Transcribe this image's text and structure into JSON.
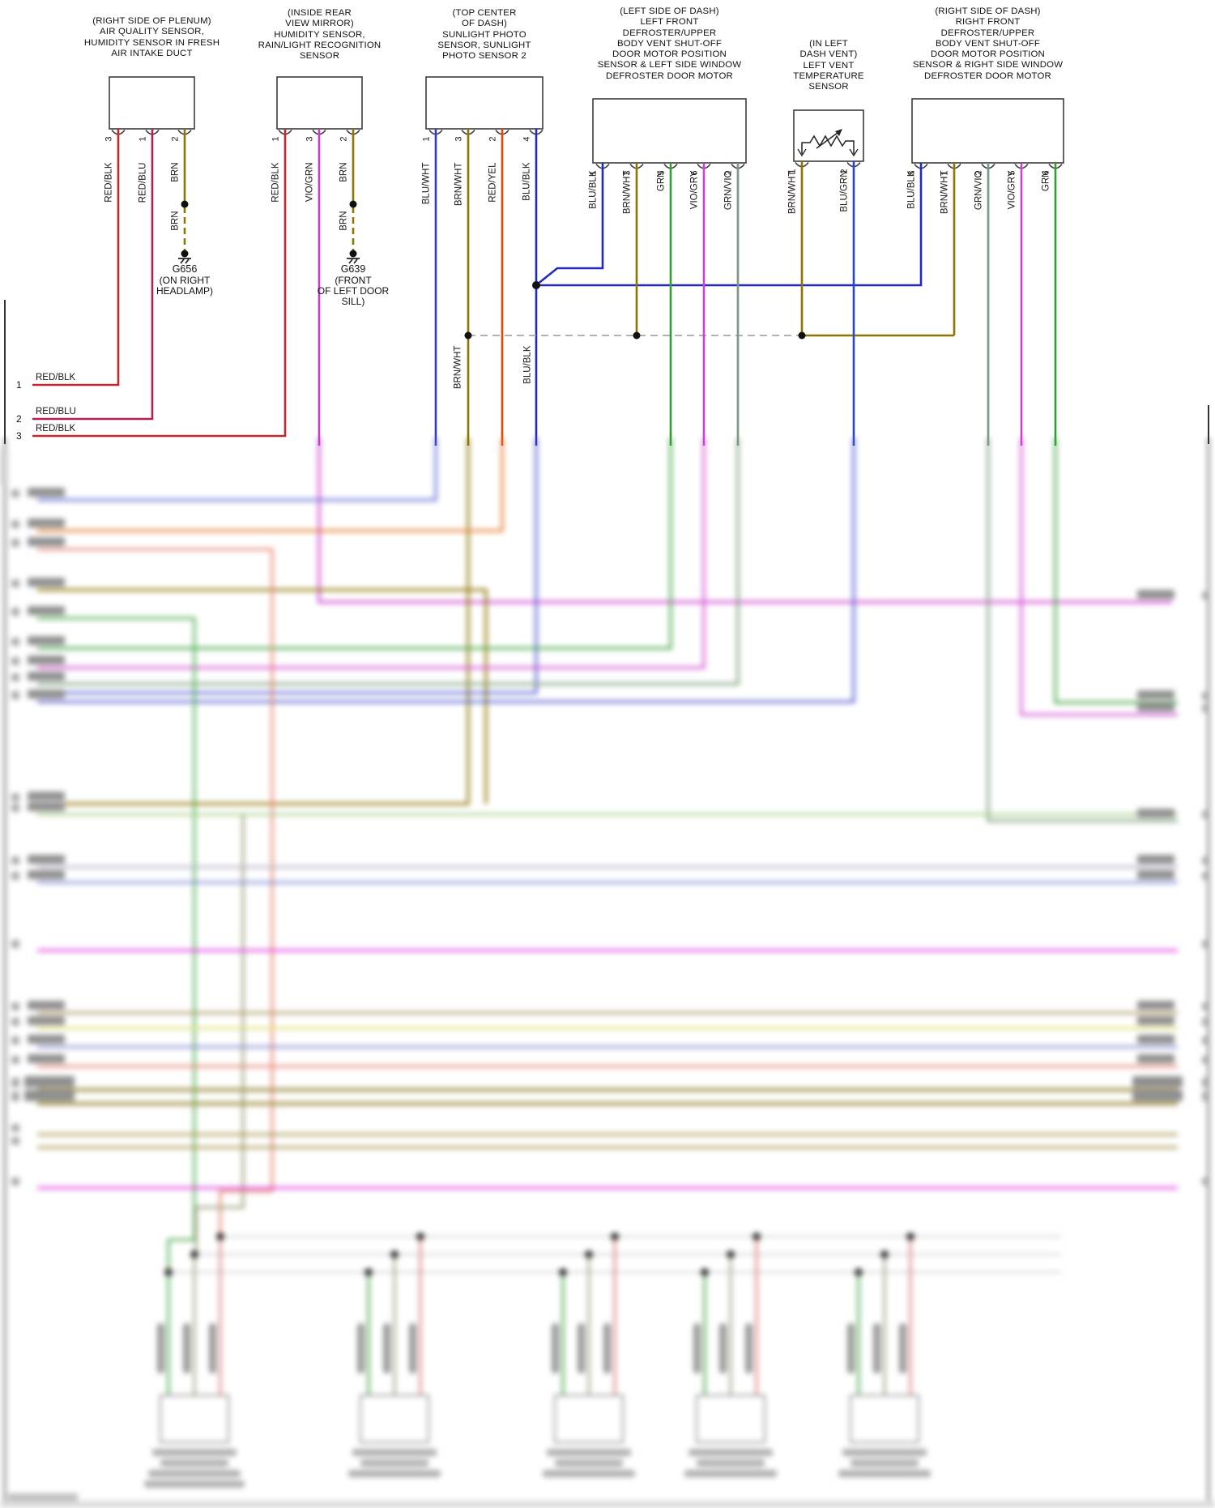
{
  "connectors": [
    {
      "id": "air-quality-sensor",
      "title": "(RIGHT SIDE OF PLENUM)\nAIR QUALITY SENSOR,\nHUMIDITY SENSOR IN FRESH\nAIR INTAKE DUCT",
      "pins": [
        {
          "n": "3",
          "color": "RED/BLK"
        },
        {
          "n": "1",
          "color": "RED/BLU"
        },
        {
          "n": "2",
          "color": "BRN"
        }
      ]
    },
    {
      "id": "rain-light-sensor",
      "title": "(INSIDE REAR\nVIEW MIRROR)\nHUMIDITY SENSOR,\nRAIN/LIGHT RECOGNITION\nSENSOR",
      "pins": [
        {
          "n": "1",
          "color": "RED/BLK"
        },
        {
          "n": "3",
          "color": "VIO/GRN"
        },
        {
          "n": "2",
          "color": "BRN"
        }
      ]
    },
    {
      "id": "sunlight-photo-sensor",
      "title": "(TOP CENTER\nOF DASH)\nSUNLIGHT PHOTO\nSENSOR, SUNLIGHT\nPHOTO SENSOR 2",
      "pins": [
        {
          "n": "1",
          "color": "BLU/WHT"
        },
        {
          "n": "3",
          "color": "BRN/WHT"
        },
        {
          "n": "2",
          "color": "RED/YEL"
        },
        {
          "n": "4",
          "color": "BLU/BLK"
        }
      ]
    },
    {
      "id": "left-defroster-door-motor",
      "title": "(LEFT SIDE OF DASH)\nLEFT FRONT\nDEFROSTER/UPPER\nBODY VENT SHUT-OFF\nDOOR MOTOR POSITION\nSENSOR & LEFT SIDE WINDOW\nDEFROSTER DOOR MOTOR",
      "pins": [
        {
          "n": "1",
          "color": "BLU/BLK"
        },
        {
          "n": "3",
          "color": "BRN/WHT"
        },
        {
          "n": "5",
          "color": "GRN"
        },
        {
          "n": "6",
          "color": "VIO/GRY"
        },
        {
          "n": "2",
          "color": "GRN/VIO"
        }
      ]
    },
    {
      "id": "left-vent-temperature-sensor",
      "title": "(IN LEFT\nDASH VENT)\nLEFT VENT\nTEMPERATURE\nSENSOR",
      "pins": [
        {
          "n": "1",
          "color": "BRN/WHT"
        },
        {
          "n": "2",
          "color": "BLU/GRN"
        }
      ]
    },
    {
      "id": "right-defroster-door-motor",
      "title": "(RIGHT SIDE OF DASH)\nRIGHT FRONT\nDEFROSTER/UPPER\nBODY VENT SHUT-OFF\nDOOR MOTOR POSITION\nSENSOR & RIGHT SIDE WINDOW\nDEFROSTER DOOR MOTOR",
      "pins": [
        {
          "n": "3",
          "color": "BLU/BLK"
        },
        {
          "n": "1",
          "color": "BRN/WHT"
        },
        {
          "n": "2",
          "color": "GRN/VIO"
        },
        {
          "n": "5",
          "color": "VIO/GRY"
        },
        {
          "n": "6",
          "color": "GRN"
        }
      ]
    }
  ],
  "grounds": [
    {
      "label": "G656",
      "location": "(ON RIGHT\nHEADLAMP)"
    },
    {
      "label": "G639",
      "location": "(FRONT\nOF LEFT DOOR\nSILL)"
    }
  ],
  "left_feed_wires": [
    {
      "num": "1",
      "color": "RED/BLK"
    },
    {
      "num": "2",
      "color": "RED/BLU"
    },
    {
      "num": "3",
      "color": "RED/BLK"
    }
  ],
  "inline_labels": [
    {
      "color": "BRN/WHT"
    },
    {
      "color": "BLU/BLK"
    }
  ],
  "wire_colors": {
    "RED/BLK": "#c3282e",
    "RED/BLU": "#b22052",
    "BRN": "#8d7500",
    "VIO/GRN": "#c93ccb",
    "BLU/WHT": "#2d3cc3",
    "BRN/WHT": "#8d7500",
    "RED/YEL": "#e24a00",
    "BLU/BLK": "#2029c0",
    "GRN": "#2da02d",
    "VIO/GRY": "#d13ed1",
    "GRN/VIO": "#3f9e3f",
    "BLU/GRN": "#2847c8"
  }
}
